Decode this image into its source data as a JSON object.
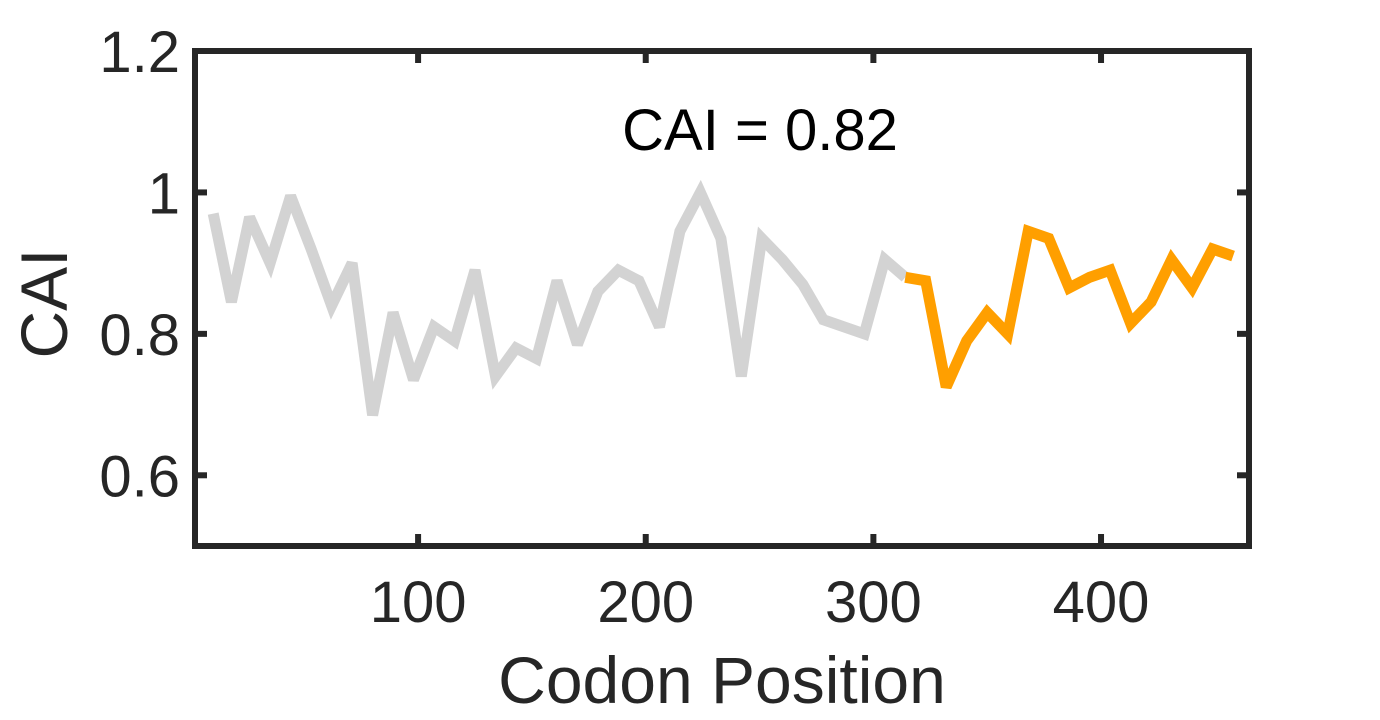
{
  "chart_data": {
    "type": "line",
    "title": "",
    "xlabel": "Codon Position",
    "ylabel": "CAI",
    "xlim": [
      2,
      465
    ],
    "ylim": [
      0.5,
      1.2
    ],
    "xticks": [
      100,
      200,
      300,
      400
    ],
    "xtick_labels": [
      "100",
      "200",
      "300",
      "400"
    ],
    "yticks": [
      0.6,
      0.8,
      1.0,
      1.2
    ],
    "ytick_labels": [
      "0.6",
      "0.8",
      "1",
      "1.2"
    ],
    "grid": false,
    "annotation": "CAI = 0.82",
    "series": [
      {
        "color": "#d3d3d3",
        "x": [
          10,
          18,
          26,
          35,
          44,
          53,
          62,
          71,
          80,
          89,
          98,
          107,
          116,
          125,
          134,
          143,
          152,
          161,
          170,
          179,
          188,
          197,
          206,
          215,
          224,
          233,
          242,
          251,
          260,
          269,
          278,
          287,
          296,
          305,
          314
        ],
        "y": [
          0.97,
          0.845,
          0.965,
          0.9,
          0.995,
          0.92,
          0.84,
          0.9,
          0.685,
          0.83,
          0.735,
          0.81,
          0.79,
          0.89,
          0.74,
          0.78,
          0.765,
          0.875,
          0.785,
          0.86,
          0.89,
          0.875,
          0.81,
          0.945,
          1.0,
          0.935,
          0.74,
          0.935,
          0.905,
          0.87,
          0.82,
          0.81,
          0.8,
          0.905,
          0.88
        ]
      },
      {
        "color": "#ff9f00",
        "x": [
          314,
          323,
          332,
          341,
          350,
          359,
          368,
          377,
          386,
          395,
          404,
          413,
          422,
          431,
          440,
          449,
          458
        ],
        "y": [
          0.88,
          0.875,
          0.725,
          0.79,
          0.83,
          0.8,
          0.945,
          0.935,
          0.865,
          0.88,
          0.89,
          0.815,
          0.845,
          0.905,
          0.865,
          0.92,
          0.91
        ]
      }
    ]
  }
}
